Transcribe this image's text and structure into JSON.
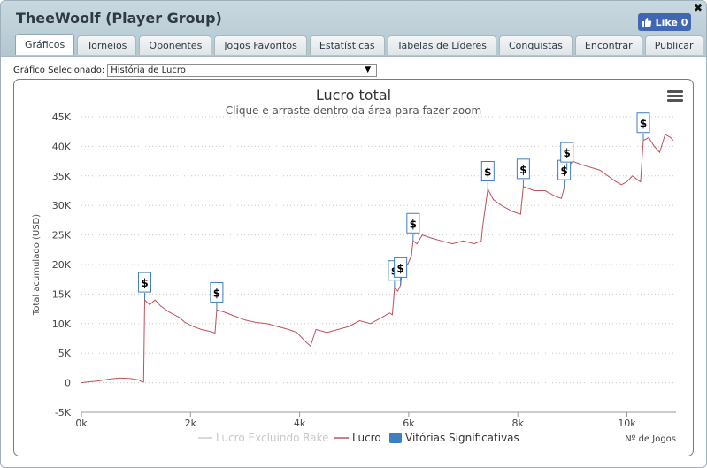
{
  "window": {
    "title": "TheeWoolf (Player Group)",
    "close_glyph": "✖"
  },
  "like": {
    "label": "Like 0",
    "icon": "thumbs-up-icon"
  },
  "tabs": [
    {
      "label": "Gráficos",
      "active": true
    },
    {
      "label": "Torneios"
    },
    {
      "label": "Oponentes"
    },
    {
      "label": "Jogos Favoritos"
    },
    {
      "label": "Estatísticas"
    },
    {
      "label": "Tabelas de Líderes"
    },
    {
      "label": "Conquistas"
    },
    {
      "label": "Encontrar"
    },
    {
      "label": "Publicar"
    }
  ],
  "selector": {
    "label": "Gráfico Selecionado:",
    "value": "História de Lucro",
    "arrow": "▼"
  },
  "chart_data": {
    "type": "line",
    "title": "Lucro total",
    "subtitle": "Clique e arraste dentro da área para fazer zoom",
    "ylabel": "Total acumulado (USD)",
    "xlabel": "Nº de Jogos",
    "xlim": [
      0,
      10900
    ],
    "ylim": [
      -5000,
      45000
    ],
    "xticks": [
      {
        "v": 0,
        "label": "0k"
      },
      {
        "v": 2000,
        "label": "2k"
      },
      {
        "v": 4000,
        "label": "4k"
      },
      {
        "v": 6000,
        "label": "6k"
      },
      {
        "v": 8000,
        "label": "8k"
      },
      {
        "v": 10000,
        "label": "10k"
      }
    ],
    "yticks": [
      {
        "v": -5000,
        "label": "-5K"
      },
      {
        "v": 0,
        "label": "0"
      },
      {
        "v": 5000,
        "label": "5K"
      },
      {
        "v": 10000,
        "label": "10K"
      },
      {
        "v": 15000,
        "label": "15K"
      },
      {
        "v": 20000,
        "label": "20K"
      },
      {
        "v": 25000,
        "label": "25K"
      },
      {
        "v": 30000,
        "label": "30K"
      },
      {
        "v": 35000,
        "label": "35K"
      },
      {
        "v": 40000,
        "label": "40K"
      },
      {
        "v": 45000,
        "label": "45K"
      }
    ],
    "grid": "horizontal dotted",
    "legend": {
      "position": "bottom-center"
    },
    "series": [
      {
        "name": "Lucro Excluindo Rake",
        "color": "#cccccc",
        "visible": false,
        "points": []
      },
      {
        "name": "Lucro",
        "color": "#c0505a",
        "visible": true,
        "points": [
          [
            0,
            0
          ],
          [
            100,
            100
          ],
          [
            300,
            300
          ],
          [
            500,
            600
          ],
          [
            700,
            800
          ],
          [
            900,
            700
          ],
          [
            1050,
            500
          ],
          [
            1100,
            200
          ],
          [
            1140,
            100
          ],
          [
            1160,
            14000
          ],
          [
            1250,
            13200
          ],
          [
            1350,
            14000
          ],
          [
            1450,
            13000
          ],
          [
            1600,
            12000
          ],
          [
            1800,
            11000
          ],
          [
            1900,
            10200
          ],
          [
            2050,
            9500
          ],
          [
            2200,
            9000
          ],
          [
            2350,
            8700
          ],
          [
            2450,
            8400
          ],
          [
            2480,
            12300
          ],
          [
            2600,
            12000
          ],
          [
            2800,
            11300
          ],
          [
            3000,
            10600
          ],
          [
            3200,
            10200
          ],
          [
            3400,
            10000
          ],
          [
            3600,
            9500
          ],
          [
            3800,
            9000
          ],
          [
            3950,
            8500
          ],
          [
            4100,
            7000
          ],
          [
            4200,
            6200
          ],
          [
            4300,
            9000
          ],
          [
            4500,
            8500
          ],
          [
            4700,
            9000
          ],
          [
            4900,
            9500
          ],
          [
            5100,
            10500
          ],
          [
            5300,
            10000
          ],
          [
            5500,
            11000
          ],
          [
            5650,
            11800
          ],
          [
            5700,
            11500
          ],
          [
            5740,
            16000
          ],
          [
            5800,
            15500
          ],
          [
            5850,
            16500
          ],
          [
            5900,
            21000
          ],
          [
            5980,
            20000
          ],
          [
            6050,
            21500
          ],
          [
            6080,
            24000
          ],
          [
            6150,
            23500
          ],
          [
            6250,
            25000
          ],
          [
            6400,
            24500
          ],
          [
            6600,
            24000
          ],
          [
            6800,
            23500
          ],
          [
            7000,
            24000
          ],
          [
            7200,
            23500
          ],
          [
            7330,
            24000
          ],
          [
            7350,
            26000
          ],
          [
            7450,
            32800
          ],
          [
            7550,
            31000
          ],
          [
            7700,
            30000
          ],
          [
            7900,
            29000
          ],
          [
            8050,
            28500
          ],
          [
            8100,
            33200
          ],
          [
            8300,
            32500
          ],
          [
            8500,
            32500
          ],
          [
            8700,
            31500
          ],
          [
            8800,
            31200
          ],
          [
            8850,
            33000
          ],
          [
            8900,
            36000
          ],
          [
            9000,
            37500
          ],
          [
            9200,
            36800
          ],
          [
            9500,
            36000
          ],
          [
            9800,
            34000
          ],
          [
            9900,
            33500
          ],
          [
            10000,
            34000
          ],
          [
            10100,
            35000
          ],
          [
            10250,
            34000
          ],
          [
            10300,
            41000
          ],
          [
            10400,
            41500
          ],
          [
            10500,
            40000
          ],
          [
            10600,
            39000
          ],
          [
            10700,
            42000
          ],
          [
            10800,
            41500
          ],
          [
            10850,
            41000
          ]
        ]
      },
      {
        "name": "Vitórias Significativas",
        "color": "#3d7ebf",
        "flag_label": "$",
        "flags": [
          [
            1160,
            14000
          ],
          [
            2480,
            12300
          ],
          [
            5740,
            16000
          ],
          [
            5850,
            16500
          ],
          [
            6080,
            24000
          ],
          [
            7450,
            32800
          ],
          [
            8100,
            33200
          ],
          [
            8850,
            33000
          ],
          [
            8900,
            36000
          ],
          [
            10300,
            41000
          ]
        ]
      }
    ]
  }
}
